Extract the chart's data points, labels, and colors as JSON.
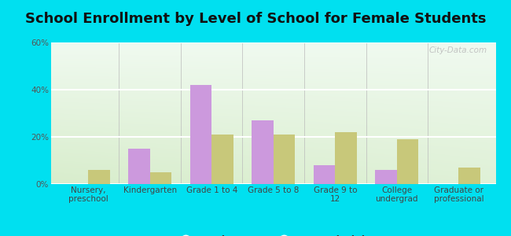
{
  "title": "School Enrollment by Level of School for Female Students",
  "categories": [
    "Nursery,\npreschool",
    "Kindergarten",
    "Grade 1 to 4",
    "Grade 5 to 8",
    "Grade 9 to\n12",
    "College\nundergrad",
    "Graduate or\nprofessional"
  ],
  "lumberport": [
    0,
    15,
    42,
    27,
    8,
    6,
    0
  ],
  "west_virginia": [
    6,
    5,
    21,
    21,
    22,
    19,
    7
  ],
  "lumberport_color": "#cc99dd",
  "west_virginia_color": "#c8c87a",
  "background_outer": "#00e0f0",
  "background_plot": "#e8f5e0",
  "ylim": [
    0,
    60
  ],
  "yticks": [
    0,
    20,
    40,
    60
  ],
  "ytick_labels": [
    "0%",
    "20%",
    "40%",
    "60%"
  ],
  "bar_width": 0.35,
  "title_fontsize": 13,
  "tick_fontsize": 7.5,
  "legend_fontsize": 9,
  "watermark": "City-Data.com"
}
